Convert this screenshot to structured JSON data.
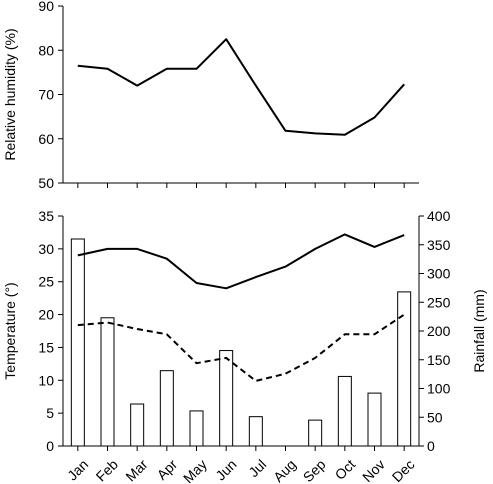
{
  "chart_data": [
    {
      "type": "line",
      "x": [
        "Jan",
        "Feb",
        "Mar",
        "Apr",
        "May",
        "Jun",
        "Jul",
        "Aug",
        "Sep",
        "Oct",
        "Nov",
        "Dec"
      ],
      "series": [
        {
          "values": [
            76.5,
            75.8,
            72,
            75.8,
            75.8,
            82.5,
            72,
            61.8,
            61.2,
            60.9,
            64.8,
            72.3
          ],
          "style": "solid"
        }
      ],
      "ylabel": "Relative humidity (%)",
      "ylim": [
        50,
        90
      ],
      "yticks": [
        50,
        60,
        70,
        80,
        90
      ],
      "grid": false
    },
    {
      "type": "bar+line",
      "categories": [
        "Jan",
        "Feb",
        "Mar",
        "Apr",
        "May",
        "Jun",
        "Jul",
        "Aug",
        "Sep",
        "Oct",
        "Nov",
        "Dec"
      ],
      "bars": {
        "axis": "right",
        "values": [
          360,
          223,
          73,
          131,
          61,
          166,
          51,
          0,
          45,
          121,
          92,
          268
        ]
      },
      "lines": [
        {
          "axis": "left",
          "style": "solid",
          "values": [
            29,
            30,
            30,
            28.5,
            24.8,
            24,
            25.7,
            27.3,
            30,
            32.2,
            30.3,
            32.1
          ]
        },
        {
          "axis": "left",
          "style": "dashed",
          "values": [
            18.4,
            18.8,
            17.8,
            17,
            12.6,
            13.4,
            9.9,
            11,
            13.4,
            17,
            17,
            20
          ]
        }
      ],
      "ylabel_left": "Temperature (°)",
      "ylim_left": [
        0,
        35
      ],
      "yticks_left": [
        0,
        5,
        10,
        15,
        20,
        25,
        30,
        35
      ],
      "ylabel_right": "Rainfall (mm)",
      "ylim_right": [
        0,
        400
      ],
      "yticks_right": [
        0,
        50,
        100,
        150,
        200,
        250,
        300,
        350,
        400
      ],
      "grid": false,
      "colors": {
        "bar_fill": "#ffffff",
        "stroke": "#000000"
      }
    }
  ]
}
